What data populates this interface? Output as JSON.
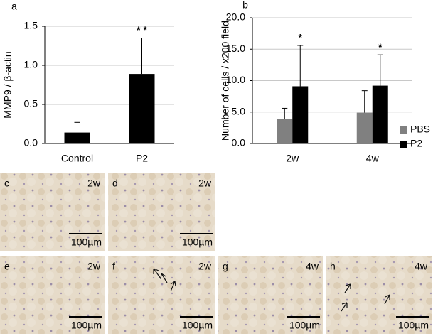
{
  "chart_data": [
    {
      "type": "bar",
      "panel": "a",
      "y_label": "MMP9 / β-actin",
      "categories": [
        "Control",
        "P2"
      ],
      "values": [
        0.14,
        0.89
      ],
      "errors": [
        0.13,
        0.46
      ],
      "significance": [
        null,
        "* *"
      ],
      "color": "#000000",
      "ylim": [
        0,
        1.5
      ],
      "yticks": [
        {
          "value": 0,
          "label": "0.0"
        },
        {
          "value": 0.5,
          "label": "0.5"
        },
        {
          "value": 1,
          "label": "1.0"
        },
        {
          "value": 1.5,
          "label": "1.5"
        }
      ],
      "grid": true
    },
    {
      "type": "bar",
      "panel": "b",
      "y_label": "Number of cells / x200 field",
      "categories": [
        "2w",
        "4w"
      ],
      "series": [
        {
          "name": "PBS",
          "color": "#808080",
          "values": [
            3.9,
            4.9
          ],
          "errors": [
            1.7,
            3.5
          ]
        },
        {
          "name": "P2",
          "color": "#000000",
          "values": [
            9.1,
            9.2
          ],
          "errors": [
            6.5,
            4.9
          ],
          "significance": [
            "*",
            "*"
          ]
        }
      ],
      "ylim": [
        0,
        20
      ],
      "yticks": [
        {
          "value": 0,
          "label": "0.0"
        },
        {
          "value": 5,
          "label": "5.0"
        },
        {
          "value": 10,
          "label": "10.0"
        },
        {
          "value": 15,
          "label": "15.0"
        },
        {
          "value": 20,
          "label": "20.0"
        }
      ],
      "grid": true,
      "legend": "right"
    }
  ],
  "image_panels": [
    {
      "panel": "c",
      "time": "2w",
      "scale": "100µm"
    },
    {
      "panel": "d",
      "time": "2w",
      "scale": "100µm"
    },
    {
      "panel": "e",
      "time": "2w",
      "scale": "100µm"
    },
    {
      "panel": "f",
      "time": "2w",
      "scale": "100µm"
    },
    {
      "panel": "g",
      "time": "4w",
      "scale": "100µm"
    },
    {
      "panel": "h",
      "time": "4w",
      "scale": "100µm"
    }
  ]
}
